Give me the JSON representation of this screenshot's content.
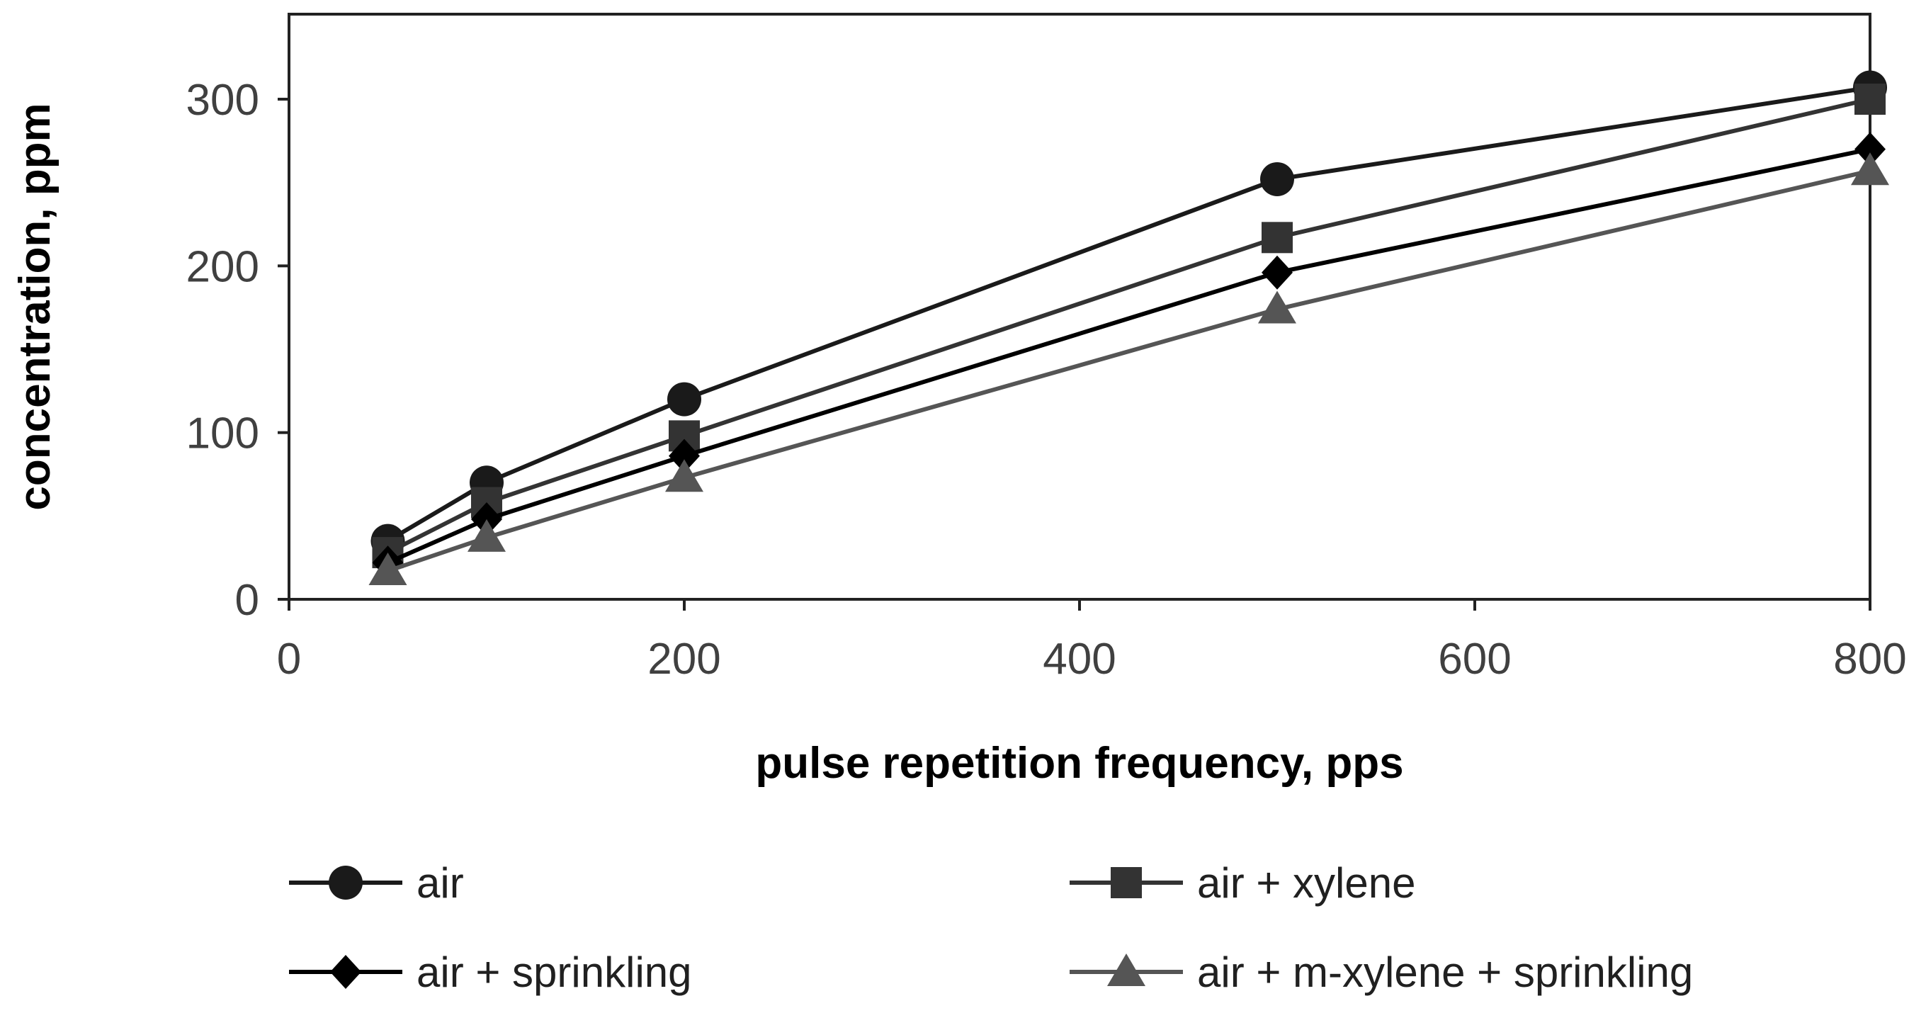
{
  "chart_data": {
    "type": "line",
    "title": "",
    "xlabel": "pulse repetition frequency, pps",
    "ylabel": "concentration, ppm",
    "xlim": [
      0,
      800
    ],
    "ylim": [
      0,
      350
    ],
    "x_ticks": [
      0,
      200,
      400,
      600,
      800
    ],
    "y_ticks": [
      0,
      100,
      200,
      300
    ],
    "x_tick_labels": [
      "0",
      "200",
      "400",
      "600",
      "800"
    ],
    "y_tick_labels": [
      "0",
      "100",
      "200",
      "300"
    ],
    "grid": false,
    "legend_position": "bottom",
    "series": [
      {
        "name": "air",
        "marker": "circle",
        "color": "#1a1a1a",
        "x": [
          50,
          100,
          200,
          500,
          800
        ],
        "y": [
          35,
          70,
          120,
          252,
          307
        ]
      },
      {
        "name": "air + xylene",
        "marker": "square",
        "color": "#333333",
        "x": [
          50,
          100,
          200,
          500,
          800
        ],
        "y": [
          28,
          58,
          98,
          217,
          300
        ]
      },
      {
        "name": "air + sprinkling",
        "marker": "diamond",
        "color": "#000000",
        "x": [
          50,
          100,
          200,
          500,
          800
        ],
        "y": [
          22,
          48,
          86,
          196,
          270
        ]
      },
      {
        "name": "air + m-xylene + sprinkling",
        "marker": "triangle",
        "color": "#555555",
        "x": [
          50,
          100,
          200,
          500,
          800
        ],
        "y": [
          17,
          37,
          73,
          174,
          257
        ]
      }
    ]
  }
}
